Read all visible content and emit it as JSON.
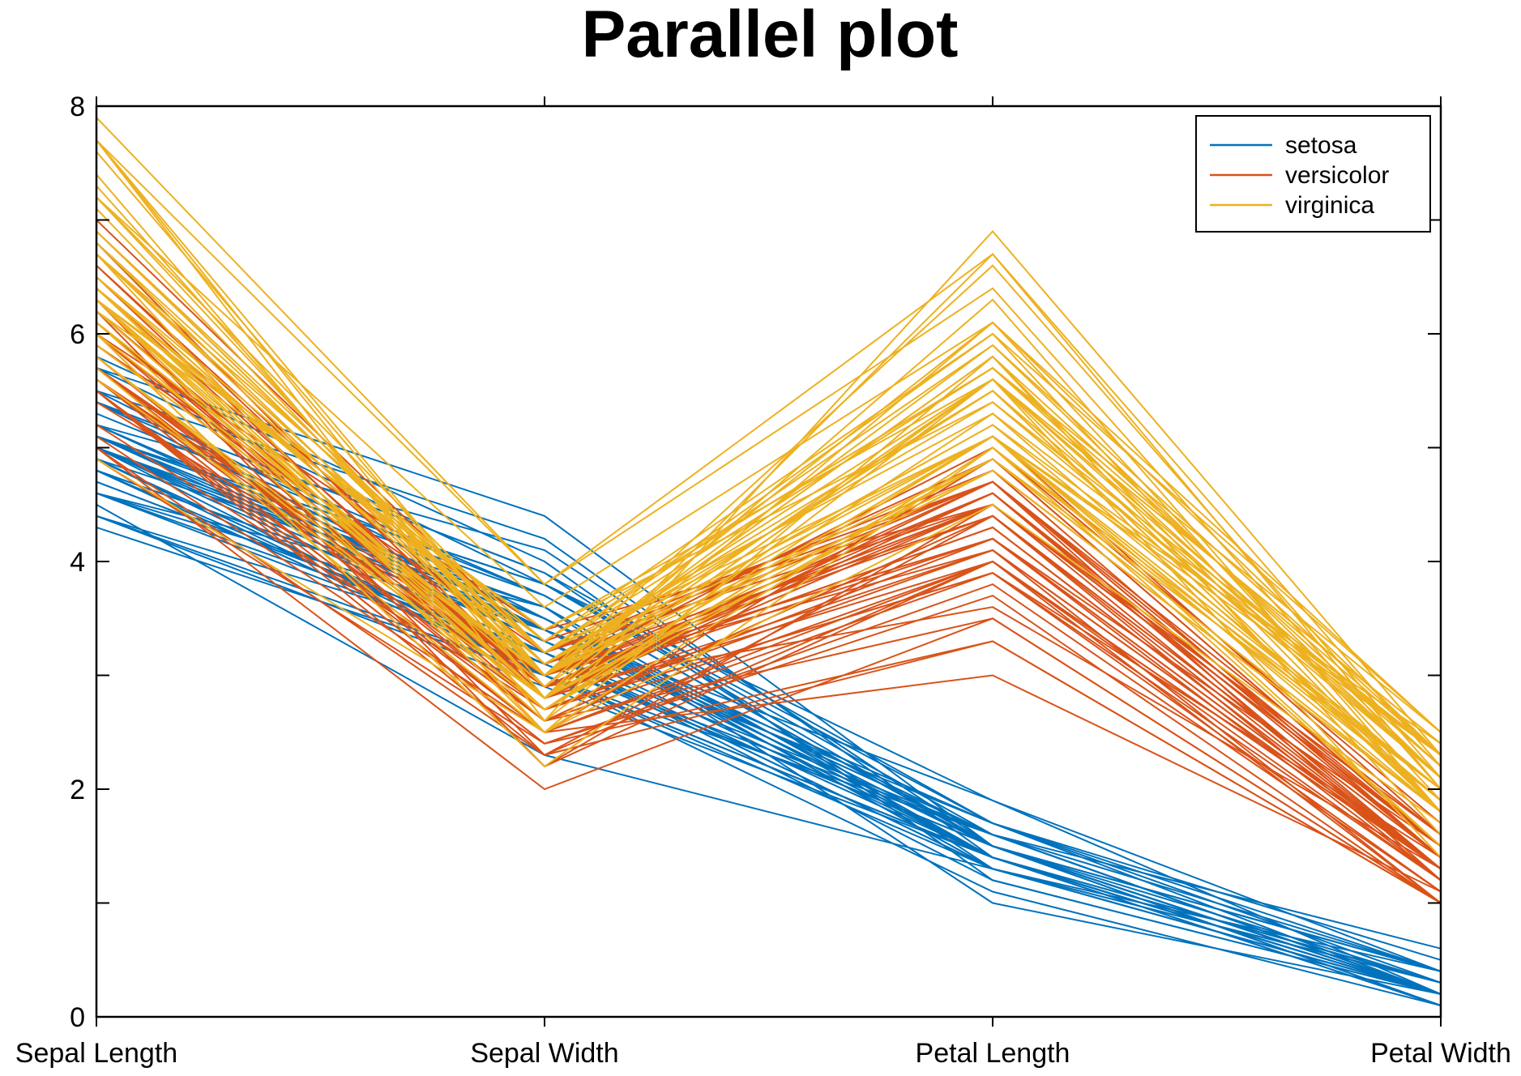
{
  "chart_data": {
    "type": "line",
    "title": "Parallel plot",
    "xlabel": "",
    "ylabel": "",
    "categories": [
      "Sepal Length",
      "Sepal Width",
      "Petal Length",
      "Petal Width"
    ],
    "ylim": [
      0,
      8
    ],
    "yticks": [
      0,
      2,
      4,
      6,
      8
    ],
    "grid": false,
    "legend": {
      "position": "top-right",
      "entries": [
        "setosa",
        "versicolor",
        "virginica"
      ]
    },
    "series": [
      {
        "name": "setosa",
        "color": "#0072BD",
        "values": [
          [
            5.1,
            3.5,
            1.4,
            0.2
          ],
          [
            4.9,
            3.0,
            1.4,
            0.2
          ],
          [
            4.7,
            3.2,
            1.3,
            0.2
          ],
          [
            4.6,
            3.1,
            1.5,
            0.2
          ],
          [
            5.0,
            3.6,
            1.4,
            0.2
          ],
          [
            5.4,
            3.9,
            1.7,
            0.4
          ],
          [
            4.6,
            3.4,
            1.4,
            0.3
          ],
          [
            5.0,
            3.4,
            1.5,
            0.2
          ],
          [
            4.4,
            2.9,
            1.4,
            0.2
          ],
          [
            4.9,
            3.1,
            1.5,
            0.1
          ],
          [
            5.4,
            3.7,
            1.5,
            0.2
          ],
          [
            4.8,
            3.4,
            1.6,
            0.2
          ],
          [
            4.8,
            3.0,
            1.4,
            0.1
          ],
          [
            4.3,
            3.0,
            1.1,
            0.1
          ],
          [
            5.8,
            4.0,
            1.2,
            0.2
          ],
          [
            5.7,
            4.4,
            1.5,
            0.4
          ],
          [
            5.4,
            3.9,
            1.3,
            0.4
          ],
          [
            5.1,
            3.5,
            1.4,
            0.3
          ],
          [
            5.7,
            3.8,
            1.7,
            0.3
          ],
          [
            5.1,
            3.8,
            1.5,
            0.3
          ],
          [
            5.4,
            3.4,
            1.7,
            0.2
          ],
          [
            5.1,
            3.7,
            1.5,
            0.4
          ],
          [
            4.6,
            3.6,
            1.0,
            0.2
          ],
          [
            5.1,
            3.3,
            1.7,
            0.5
          ],
          [
            4.8,
            3.4,
            1.9,
            0.2
          ],
          [
            5.0,
            3.0,
            1.6,
            0.2
          ],
          [
            5.0,
            3.4,
            1.6,
            0.4
          ],
          [
            5.2,
            3.5,
            1.5,
            0.2
          ],
          [
            5.2,
            3.4,
            1.4,
            0.2
          ],
          [
            4.7,
            3.2,
            1.6,
            0.2
          ],
          [
            4.8,
            3.1,
            1.6,
            0.2
          ],
          [
            5.4,
            3.4,
            1.5,
            0.4
          ],
          [
            5.2,
            4.1,
            1.5,
            0.1
          ],
          [
            5.5,
            4.2,
            1.4,
            0.2
          ],
          [
            4.9,
            3.1,
            1.5,
            0.2
          ],
          [
            5.0,
            3.2,
            1.2,
            0.2
          ],
          [
            5.5,
            3.5,
            1.3,
            0.2
          ],
          [
            4.9,
            3.6,
            1.4,
            0.1
          ],
          [
            4.4,
            3.0,
            1.3,
            0.2
          ],
          [
            5.1,
            3.4,
            1.5,
            0.2
          ],
          [
            5.0,
            3.5,
            1.3,
            0.3
          ],
          [
            4.5,
            2.3,
            1.3,
            0.3
          ],
          [
            4.4,
            3.2,
            1.3,
            0.2
          ],
          [
            5.0,
            3.5,
            1.6,
            0.6
          ],
          [
            5.1,
            3.8,
            1.9,
            0.4
          ],
          [
            4.8,
            3.0,
            1.4,
            0.3
          ],
          [
            5.1,
            3.8,
            1.6,
            0.2
          ],
          [
            4.6,
            3.2,
            1.4,
            0.2
          ],
          [
            5.3,
            3.7,
            1.5,
            0.2
          ],
          [
            5.0,
            3.3,
            1.4,
            0.2
          ]
        ]
      },
      {
        "name": "versicolor",
        "color": "#D95319",
        "values": [
          [
            7.0,
            3.2,
            4.7,
            1.4
          ],
          [
            6.4,
            3.2,
            4.5,
            1.5
          ],
          [
            6.9,
            3.1,
            4.9,
            1.5
          ],
          [
            5.5,
            2.3,
            4.0,
            1.3
          ],
          [
            6.5,
            2.8,
            4.6,
            1.5
          ],
          [
            5.7,
            2.8,
            4.5,
            1.3
          ],
          [
            6.3,
            3.3,
            4.7,
            1.6
          ],
          [
            4.9,
            2.4,
            3.3,
            1.0
          ],
          [
            6.6,
            2.9,
            4.6,
            1.3
          ],
          [
            5.2,
            2.7,
            3.9,
            1.4
          ],
          [
            5.0,
            2.0,
            3.5,
            1.0
          ],
          [
            5.9,
            3.0,
            4.2,
            1.5
          ],
          [
            6.0,
            2.2,
            4.0,
            1.0
          ],
          [
            6.1,
            2.9,
            4.7,
            1.4
          ],
          [
            5.6,
            2.9,
            3.6,
            1.3
          ],
          [
            6.7,
            3.1,
            4.4,
            1.4
          ],
          [
            5.6,
            3.0,
            4.5,
            1.5
          ],
          [
            5.8,
            2.7,
            4.1,
            1.0
          ],
          [
            6.2,
            2.2,
            4.5,
            1.5
          ],
          [
            5.6,
            2.5,
            3.9,
            1.1
          ],
          [
            5.9,
            3.2,
            4.8,
            1.8
          ],
          [
            6.1,
            2.8,
            4.0,
            1.3
          ],
          [
            6.3,
            2.5,
            4.9,
            1.5
          ],
          [
            6.1,
            2.8,
            4.7,
            1.2
          ],
          [
            6.4,
            2.9,
            4.3,
            1.3
          ],
          [
            6.6,
            3.0,
            4.4,
            1.4
          ],
          [
            6.8,
            2.8,
            4.8,
            1.4
          ],
          [
            6.7,
            3.0,
            5.0,
            1.7
          ],
          [
            6.0,
            2.9,
            4.5,
            1.5
          ],
          [
            5.7,
            2.6,
            3.5,
            1.0
          ],
          [
            5.5,
            2.4,
            3.8,
            1.1
          ],
          [
            5.5,
            2.4,
            3.7,
            1.0
          ],
          [
            5.8,
            2.7,
            3.9,
            1.2
          ],
          [
            6.0,
            2.7,
            5.1,
            1.6
          ],
          [
            5.4,
            3.0,
            4.5,
            1.5
          ],
          [
            6.0,
            3.4,
            4.5,
            1.6
          ],
          [
            6.7,
            3.1,
            4.7,
            1.5
          ],
          [
            6.3,
            2.3,
            4.4,
            1.3
          ],
          [
            5.6,
            3.0,
            4.1,
            1.3
          ],
          [
            5.5,
            2.5,
            4.0,
            1.3
          ],
          [
            5.5,
            2.6,
            4.4,
            1.2
          ],
          [
            6.1,
            3.0,
            4.6,
            1.4
          ],
          [
            5.8,
            2.6,
            4.0,
            1.2
          ],
          [
            5.0,
            2.3,
            3.3,
            1.0
          ],
          [
            5.6,
            2.7,
            4.2,
            1.3
          ],
          [
            5.7,
            3.0,
            4.2,
            1.2
          ],
          [
            5.7,
            2.9,
            4.2,
            1.3
          ],
          [
            6.2,
            2.9,
            4.3,
            1.3
          ],
          [
            5.1,
            2.5,
            3.0,
            1.1
          ],
          [
            5.7,
            2.8,
            4.1,
            1.3
          ]
        ]
      },
      {
        "name": "virginica",
        "color": "#EDB120",
        "values": [
          [
            6.3,
            3.3,
            6.0,
            2.5
          ],
          [
            5.8,
            2.7,
            5.1,
            1.9
          ],
          [
            7.1,
            3.0,
            5.9,
            2.1
          ],
          [
            6.3,
            2.9,
            5.6,
            1.8
          ],
          [
            6.5,
            3.0,
            5.8,
            2.2
          ],
          [
            7.6,
            3.0,
            6.6,
            2.1
          ],
          [
            4.9,
            2.5,
            4.5,
            1.7
          ],
          [
            7.3,
            2.9,
            6.3,
            1.8
          ],
          [
            6.7,
            2.5,
            5.8,
            1.8
          ],
          [
            7.2,
            3.6,
            6.1,
            2.5
          ],
          [
            6.5,
            3.2,
            5.1,
            2.0
          ],
          [
            6.4,
            2.7,
            5.3,
            1.9
          ],
          [
            6.8,
            3.0,
            5.5,
            2.1
          ],
          [
            5.7,
            2.5,
            5.0,
            2.0
          ],
          [
            5.8,
            2.8,
            5.1,
            2.4
          ],
          [
            6.4,
            3.2,
            5.3,
            2.3
          ],
          [
            6.5,
            3.0,
            5.5,
            1.8
          ],
          [
            7.7,
            3.8,
            6.7,
            2.2
          ],
          [
            7.7,
            2.6,
            6.9,
            2.3
          ],
          [
            6.0,
            2.2,
            5.0,
            1.5
          ],
          [
            6.9,
            3.2,
            5.7,
            2.3
          ],
          [
            5.6,
            2.8,
            4.9,
            2.0
          ],
          [
            7.7,
            2.8,
            6.7,
            2.0
          ],
          [
            6.3,
            2.7,
            4.9,
            1.8
          ],
          [
            6.7,
            3.3,
            5.7,
            2.1
          ],
          [
            7.2,
            3.2,
            6.0,
            1.8
          ],
          [
            6.2,
            2.8,
            4.8,
            1.8
          ],
          [
            6.1,
            3.0,
            4.9,
            1.8
          ],
          [
            6.4,
            2.8,
            5.6,
            2.1
          ],
          [
            7.2,
            3.0,
            5.8,
            1.6
          ],
          [
            7.4,
            2.8,
            6.1,
            1.9
          ],
          [
            7.9,
            3.8,
            6.4,
            2.0
          ],
          [
            6.4,
            2.8,
            5.6,
            2.2
          ],
          [
            6.3,
            2.8,
            5.1,
            1.5
          ],
          [
            6.1,
            2.6,
            5.6,
            1.4
          ],
          [
            7.7,
            3.0,
            6.1,
            2.3
          ],
          [
            6.3,
            3.4,
            5.6,
            2.4
          ],
          [
            6.4,
            3.1,
            5.5,
            1.8
          ],
          [
            6.0,
            3.0,
            4.8,
            1.8
          ],
          [
            6.9,
            3.1,
            5.4,
            2.1
          ],
          [
            6.7,
            3.1,
            5.6,
            2.4
          ],
          [
            6.9,
            3.1,
            5.1,
            2.3
          ],
          [
            5.8,
            2.7,
            5.1,
            1.9
          ],
          [
            6.8,
            3.2,
            5.9,
            2.3
          ],
          [
            6.7,
            3.3,
            5.7,
            2.5
          ],
          [
            6.7,
            3.0,
            5.2,
            2.3
          ],
          [
            6.3,
            2.5,
            5.0,
            1.9
          ],
          [
            6.5,
            3.0,
            5.2,
            2.0
          ],
          [
            6.2,
            3.4,
            5.4,
            2.3
          ],
          [
            5.9,
            3.0,
            5.1,
            1.8
          ]
        ]
      }
    ]
  }
}
